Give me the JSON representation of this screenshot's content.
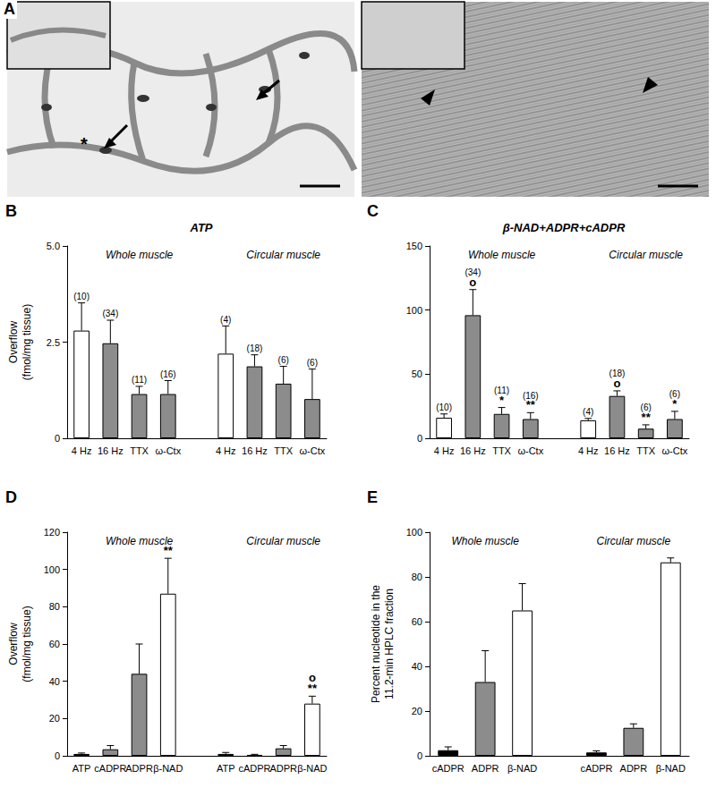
{
  "panel_a": {
    "label": "A",
    "annotations": [
      "*"
    ]
  },
  "chart_data": [
    {
      "type": "bar",
      "label": "B",
      "title": "ATP",
      "y_label": [
        "Overflow",
        "(fmol/mg tissue)"
      ],
      "groups": [
        "Whole muscle",
        "Circular muscle"
      ],
      "categories": [
        "4 Hz",
        "16 Hz",
        "TTX",
        "ω-Ctx",
        null,
        "4 Hz",
        "16 Hz",
        "TTX",
        "ω-Ctx"
      ],
      "values": [
        2.8,
        2.47,
        1.15,
        1.15,
        null,
        2.2,
        1.87,
        1.42,
        1.02
      ],
      "errors": [
        0.72,
        0.6,
        0.2,
        0.35,
        null,
        0.72,
        0.3,
        0.45,
        0.78
      ],
      "n_labels": [
        "(10)",
        "(34)",
        "(11)",
        "(16)",
        null,
        "(4)",
        "(18)",
        "(6)",
        "(6)"
      ],
      "significance": [
        null,
        null,
        null,
        null,
        null,
        null,
        null,
        null,
        null
      ],
      "colors": [
        "#ffffff",
        "#8c8c8c",
        "#8c8c8c",
        "#8c8c8c",
        null,
        "#ffffff",
        "#8c8c8c",
        "#8c8c8c",
        "#8c8c8c"
      ],
      "ylim": [
        0,
        5
      ],
      "yticks": [
        0,
        2.5,
        {
          "value": 5,
          "label": "5.0"
        }
      ],
      "grid": false
    },
    {
      "type": "bar",
      "label": "C",
      "title": "β-NAD+ADPR+cADPR",
      "groups": [
        "Whole muscle",
        "Circular muscle"
      ],
      "categories": [
        "4 Hz",
        "16 Hz",
        "TTX",
        "ω-Ctx",
        null,
        "4 Hz",
        "16 Hz",
        "TTX",
        "ω-Ctx"
      ],
      "values": [
        16,
        96,
        19,
        15,
        null,
        14,
        33,
        7.5,
        15
      ],
      "errors": [
        3,
        20,
        5,
        5,
        null,
        1.5,
        4,
        3,
        6
      ],
      "n_labels": [
        "(10)",
        "(34)",
        "(11)",
        "(16)",
        null,
        "(4)",
        "(18)",
        "(6)",
        "(6)"
      ],
      "significance": [
        null,
        [
          "o"
        ],
        [
          "*"
        ],
        [
          "**"
        ],
        null,
        null,
        [
          "o"
        ],
        [
          "**"
        ],
        [
          "*"
        ]
      ],
      "colors": [
        "#ffffff",
        "#8c8c8c",
        "#8c8c8c",
        "#8c8c8c",
        null,
        "#ffffff",
        "#8c8c8c",
        "#8c8c8c",
        "#8c8c8c"
      ],
      "ylim": [
        0,
        150
      ],
      "yticks": [
        0,
        50,
        100,
        150
      ],
      "grid": false
    },
    {
      "type": "bar",
      "label": "D",
      "y_label": [
        "Overflow",
        "(fmol/mg tissue)"
      ],
      "groups": [
        "Whole muscle",
        "Circular muscle"
      ],
      "categories": [
        "ATP",
        "cADPR",
        "ADPR",
        "β-NAD",
        null,
        "ATP",
        "cADPR",
        "ADPR",
        "β-NAD"
      ],
      "values": [
        1,
        3.5,
        44,
        87,
        null,
        1,
        0.5,
        4,
        28
      ],
      "errors": [
        0.5,
        2,
        16,
        19,
        null,
        0.8,
        0.3,
        1.5,
        4
      ],
      "significance": [
        null,
        null,
        null,
        [
          "**"
        ],
        null,
        null,
        null,
        null,
        [
          "o",
          "**"
        ]
      ],
      "colors": [
        "#000000",
        "#8c8c8c",
        "#8c8c8c",
        "#ffffff",
        null,
        "#000000",
        "#8c8c8c",
        "#8c8c8c",
        "#ffffff"
      ],
      "ylim": [
        0,
        120
      ],
      "yticks": [
        0,
        20,
        40,
        60,
        80,
        100,
        120
      ],
      "grid": false
    },
    {
      "type": "bar",
      "label": "E",
      "y_label": [
        "Percent nucleotide in the",
        "11.2-min HPLC fraction"
      ],
      "groups": [
        "Whole muscle",
        "Circular muscle"
      ],
      "categories": [
        "cADPR",
        "ADPR",
        "β-NAD",
        null,
        "cADPR",
        "ADPR",
        "β-NAD"
      ],
      "values": [
        2.5,
        33,
        65,
        null,
        1.5,
        12.5,
        86.5
      ],
      "errors": [
        1.5,
        14,
        12,
        null,
        0.7,
        1.8,
        2
      ],
      "colors": [
        "#000000",
        "#8c8c8c",
        "#ffffff",
        null,
        "#000000",
        "#8c8c8c",
        "#ffffff"
      ],
      "ylim": [
        0,
        100
      ],
      "yticks": [
        0,
        20,
        40,
        60,
        80,
        100
      ],
      "grid": false
    }
  ]
}
